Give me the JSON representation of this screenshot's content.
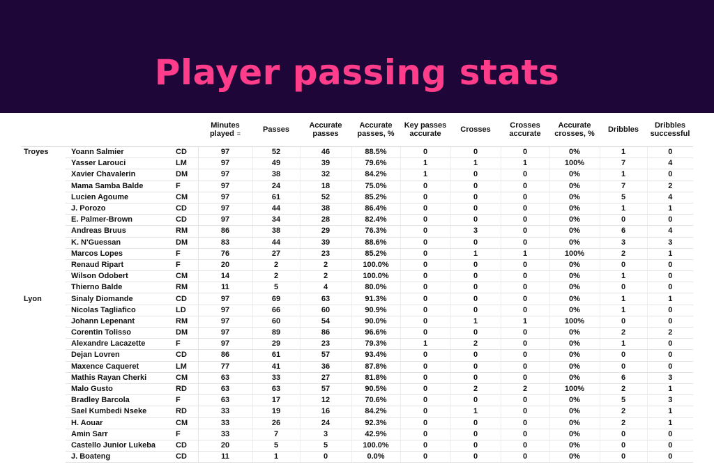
{
  "header": {
    "title": "Player passing stats"
  },
  "table": {
    "columns": [
      "Minutes played",
      "Passes",
      "Accurate passes",
      "Accurate passes, %",
      "Key passes accurate",
      "Crosses",
      "Crosses accurate",
      "Accurate crosses, %",
      "Dribbles",
      "Dribbles successful"
    ],
    "sort_column": "Minutes played",
    "teams": [
      {
        "name": "Troyes",
        "players": [
          {
            "name": "Yoann Salmier",
            "pos": "CD",
            "stats": [
              "97",
              "52",
              "46",
              "88.5%",
              "0",
              "0",
              "0",
              "0%",
              "1",
              "0"
            ]
          },
          {
            "name": "Yasser Larouci",
            "pos": "LM",
            "stats": [
              "97",
              "49",
              "39",
              "79.6%",
              "1",
              "1",
              "1",
              "100%",
              "7",
              "4"
            ]
          },
          {
            "name": "Xavier Chavalerin",
            "pos": "DM",
            "stats": [
              "97",
              "38",
              "32",
              "84.2%",
              "1",
              "0",
              "0",
              "0%",
              "1",
              "0"
            ]
          },
          {
            "name": "Mama Samba Balde",
            "pos": "F",
            "stats": [
              "97",
              "24",
              "18",
              "75.0%",
              "0",
              "0",
              "0",
              "0%",
              "7",
              "2"
            ]
          },
          {
            "name": "Lucien Agoume",
            "pos": "CM",
            "stats": [
              "97",
              "61",
              "52",
              "85.2%",
              "0",
              "0",
              "0",
              "0%",
              "5",
              "4"
            ]
          },
          {
            "name": "J. Porozo",
            "pos": "CD",
            "stats": [
              "97",
              "44",
              "38",
              "86.4%",
              "0",
              "0",
              "0",
              "0%",
              "1",
              "1"
            ]
          },
          {
            "name": "E. Palmer-Brown",
            "pos": "CD",
            "stats": [
              "97",
              "34",
              "28",
              "82.4%",
              "0",
              "0",
              "0",
              "0%",
              "0",
              "0"
            ]
          },
          {
            "name": "Andreas Bruus",
            "pos": "RM",
            "stats": [
              "86",
              "38",
              "29",
              "76.3%",
              "0",
              "3",
              "0",
              "0%",
              "6",
              "4"
            ]
          },
          {
            "name": "K. N'Guessan",
            "pos": "DM",
            "stats": [
              "83",
              "44",
              "39",
              "88.6%",
              "0",
              "0",
              "0",
              "0%",
              "3",
              "3"
            ]
          },
          {
            "name": "Marcos Lopes",
            "pos": "F",
            "stats": [
              "76",
              "27",
              "23",
              "85.2%",
              "0",
              "1",
              "1",
              "100%",
              "2",
              "1"
            ]
          },
          {
            "name": "Renaud Ripart",
            "pos": "F",
            "stats": [
              "20",
              "2",
              "2",
              "100.0%",
              "0",
              "0",
              "0",
              "0%",
              "0",
              "0"
            ]
          },
          {
            "name": "Wilson Odobert",
            "pos": "CM",
            "stats": [
              "14",
              "2",
              "2",
              "100.0%",
              "0",
              "0",
              "0",
              "0%",
              "1",
              "0"
            ]
          },
          {
            "name": "Thierno Balde",
            "pos": "RM",
            "stats": [
              "11",
              "5",
              "4",
              "80.0%",
              "0",
              "0",
              "0",
              "0%",
              "0",
              "0"
            ]
          }
        ]
      },
      {
        "name": "Lyon",
        "players": [
          {
            "name": "Sinaly Diomande",
            "pos": "CD",
            "stats": [
              "97",
              "69",
              "63",
              "91.3%",
              "0",
              "0",
              "0",
              "0%",
              "1",
              "1"
            ]
          },
          {
            "name": "Nicolas Tagliafico",
            "pos": "LD",
            "stats": [
              "97",
              "66",
              "60",
              "90.9%",
              "0",
              "0",
              "0",
              "0%",
              "1",
              "0"
            ]
          },
          {
            "name": "Johann Lepenant",
            "pos": "RM",
            "stats": [
              "97",
              "60",
              "54",
              "90.0%",
              "0",
              "1",
              "1",
              "100%",
              "0",
              "0"
            ]
          },
          {
            "name": "Corentin Tolisso",
            "pos": "DM",
            "stats": [
              "97",
              "89",
              "86",
              "96.6%",
              "0",
              "0",
              "0",
              "0%",
              "2",
              "2"
            ]
          },
          {
            "name": "Alexandre Lacazette",
            "pos": "F",
            "stats": [
              "97",
              "29",
              "23",
              "79.3%",
              "1",
              "2",
              "0",
              "0%",
              "1",
              "0"
            ]
          },
          {
            "name": "Dejan Lovren",
            "pos": "CD",
            "stats": [
              "86",
              "61",
              "57",
              "93.4%",
              "0",
              "0",
              "0",
              "0%",
              "0",
              "0"
            ]
          },
          {
            "name": "Maxence Caqueret",
            "pos": "LM",
            "stats": [
              "77",
              "41",
              "36",
              "87.8%",
              "0",
              "0",
              "0",
              "0%",
              "0",
              "0"
            ]
          },
          {
            "name": "Mathis Rayan Cherki",
            "pos": "CM",
            "stats": [
              "63",
              "33",
              "27",
              "81.8%",
              "0",
              "0",
              "0",
              "0%",
              "6",
              "3"
            ]
          },
          {
            "name": "Malo Gusto",
            "pos": "RD",
            "stats": [
              "63",
              "63",
              "57",
              "90.5%",
              "0",
              "2",
              "2",
              "100%",
              "2",
              "1"
            ]
          },
          {
            "name": "Bradley Barcola",
            "pos": "F",
            "stats": [
              "63",
              "17",
              "12",
              "70.6%",
              "0",
              "0",
              "0",
              "0%",
              "5",
              "3"
            ]
          },
          {
            "name": "Sael Kumbedi Nseke",
            "pos": "RD",
            "stats": [
              "33",
              "19",
              "16",
              "84.2%",
              "0",
              "1",
              "0",
              "0%",
              "2",
              "1"
            ]
          },
          {
            "name": "H. Aouar",
            "pos": "CM",
            "stats": [
              "33",
              "26",
              "24",
              "92.3%",
              "0",
              "0",
              "0",
              "0%",
              "2",
              "1"
            ]
          },
          {
            "name": "Amin Sarr",
            "pos": "F",
            "stats": [
              "33",
              "7",
              "3",
              "42.9%",
              "0",
              "0",
              "0",
              "0%",
              "0",
              "0"
            ]
          },
          {
            "name": "Castello Junior Lukeba",
            "pos": "CD",
            "stats": [
              "20",
              "5",
              "5",
              "100.0%",
              "0",
              "0",
              "0",
              "0%",
              "0",
              "0"
            ]
          },
          {
            "name": "J. Boateng",
            "pos": "CD",
            "stats": [
              "11",
              "1",
              "0",
              "0.0%",
              "0",
              "0",
              "0",
              "0%",
              "0",
              "0"
            ]
          }
        ]
      }
    ]
  },
  "colors": {
    "banner_bg": "#1e0738",
    "title": "#ff3d8b"
  }
}
